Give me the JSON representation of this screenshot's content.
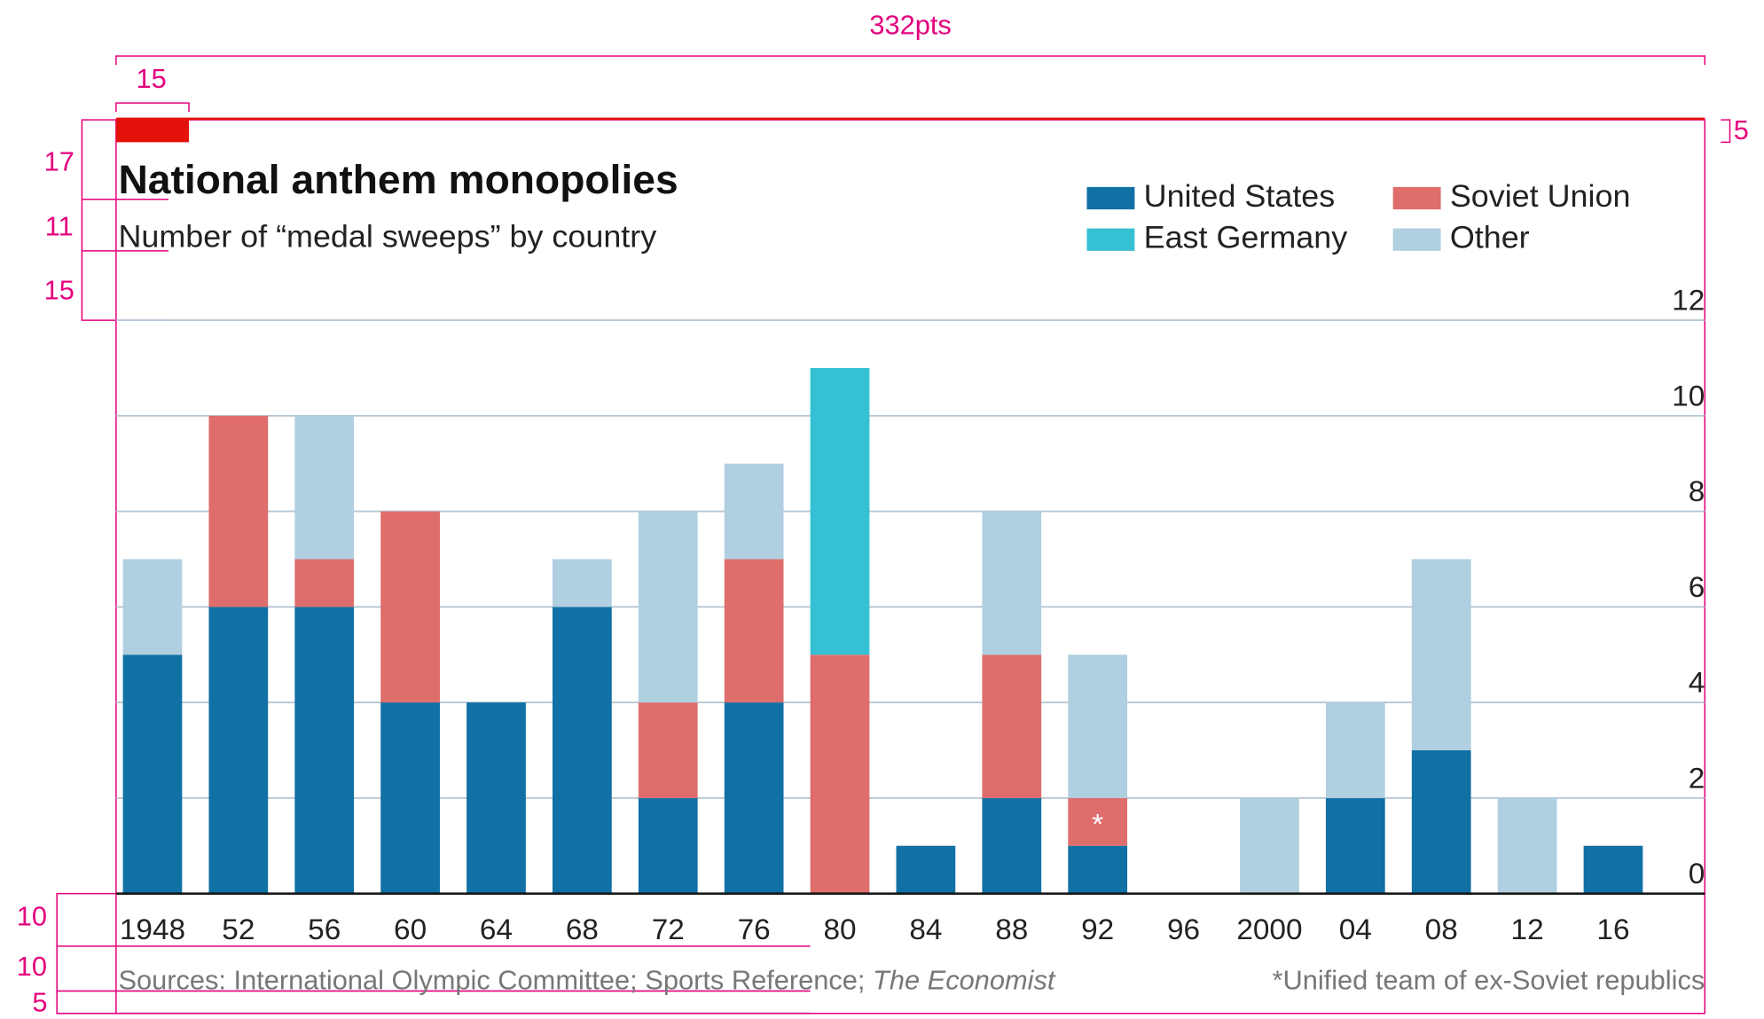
{
  "chart_data": {
    "type": "stacked_bar",
    "title": "National anthem monopolies",
    "subtitle": "Number of “medal sweeps” by country",
    "categories": [
      "1948",
      "52",
      "56",
      "60",
      "64",
      "68",
      "72",
      "76",
      "80",
      "84",
      "88",
      "92",
      "96",
      "2000",
      "04",
      "08",
      "12",
      "16"
    ],
    "series": [
      {
        "name": "United States",
        "color": "#1170a4",
        "values": [
          5,
          6,
          6,
          4,
          4,
          6,
          2,
          4,
          0,
          1,
          2,
          1,
          0,
          0,
          2,
          3,
          0,
          1
        ]
      },
      {
        "name": "Soviet Union",
        "color": "#de6d6b",
        "values": [
          0,
          4,
          1,
          4,
          0,
          0,
          2,
          3,
          5,
          0,
          3,
          1,
          0,
          0,
          0,
          0,
          0,
          0
        ]
      },
      {
        "name": "East Germany",
        "color": "#35c0d3",
        "values": [
          0,
          0,
          0,
          0,
          0,
          0,
          0,
          0,
          6,
          0,
          0,
          0,
          0,
          0,
          0,
          0,
          0,
          0
        ]
      },
      {
        "name": "Other",
        "color": "#b0cfe0",
        "values": [
          2,
          0,
          3,
          0,
          0,
          1,
          4,
          2,
          0,
          0,
          3,
          3,
          0,
          2,
          2,
          4,
          2,
          0
        ]
      }
    ],
    "ylim": [
      0,
      12
    ],
    "yticks": [
      0,
      2,
      4,
      6,
      8,
      10,
      12
    ],
    "grid": true,
    "bar_note": "*",
    "footnote": "*Unified team of ex-Soviet republics",
    "source": [
      "Sources: International Olympic Committee; Sports Reference; ",
      "The Economist"
    ],
    "annotations": [
      "332pts",
      "15",
      "5",
      "17",
      "11",
      "15",
      "10",
      "10",
      "5"
    ]
  }
}
